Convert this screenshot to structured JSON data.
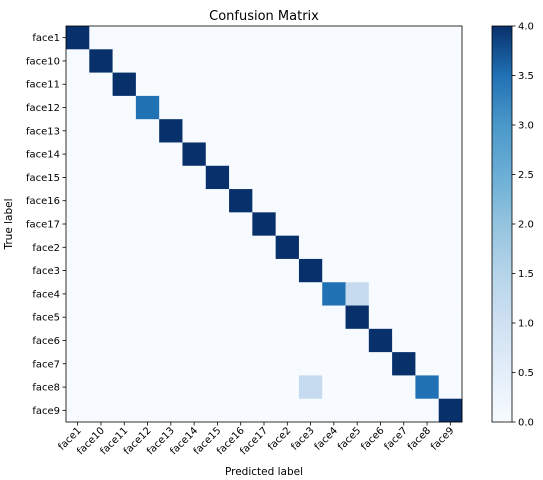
{
  "chart_data": {
    "type": "heatmap",
    "title": "Confusion Matrix",
    "xlabel": "Predicted label",
    "ylabel": "True label",
    "labels": [
      "face1",
      "face10",
      "face11",
      "face12",
      "face13",
      "face14",
      "face15",
      "face16",
      "face17",
      "face2",
      "face3",
      "face4",
      "face5",
      "face6",
      "face7",
      "face8",
      "face9"
    ],
    "matrix": [
      [
        4,
        0,
        0,
        0,
        0,
        0,
        0,
        0,
        0,
        0,
        0,
        0,
        0,
        0,
        0,
        0,
        0
      ],
      [
        0,
        4,
        0,
        0,
        0,
        0,
        0,
        0,
        0,
        0,
        0,
        0,
        0,
        0,
        0,
        0,
        0
      ],
      [
        0,
        0,
        4,
        0,
        0,
        0,
        0,
        0,
        0,
        0,
        0,
        0,
        0,
        0,
        0,
        0,
        0
      ],
      [
        0,
        0,
        0,
        3,
        0,
        0,
        0,
        0,
        0,
        0,
        0,
        0,
        0,
        0,
        0,
        0,
        0
      ],
      [
        0,
        0,
        0,
        0,
        4,
        0,
        0,
        0,
        0,
        0,
        0,
        0,
        0,
        0,
        0,
        0,
        0
      ],
      [
        0,
        0,
        0,
        0,
        0,
        4,
        0,
        0,
        0,
        0,
        0,
        0,
        0,
        0,
        0,
        0,
        0
      ],
      [
        0,
        0,
        0,
        0,
        0,
        0,
        4,
        0,
        0,
        0,
        0,
        0,
        0,
        0,
        0,
        0,
        0
      ],
      [
        0,
        0,
        0,
        0,
        0,
        0,
        0,
        4,
        0,
        0,
        0,
        0,
        0,
        0,
        0,
        0,
        0
      ],
      [
        0,
        0,
        0,
        0,
        0,
        0,
        0,
        0,
        4,
        0,
        0,
        0,
        0,
        0,
        0,
        0,
        0
      ],
      [
        0,
        0,
        0,
        0,
        0,
        0,
        0,
        0,
        0,
        4,
        0,
        0,
        0,
        0,
        0,
        0,
        0
      ],
      [
        0,
        0,
        0,
        0,
        0,
        0,
        0,
        0,
        0,
        0,
        4,
        0,
        0,
        0,
        0,
        0,
        0
      ],
      [
        0,
        0,
        0,
        0,
        0,
        0,
        0,
        0,
        0,
        0,
        0,
        3,
        1,
        0,
        0,
        0,
        0
      ],
      [
        0,
        0,
        0,
        0,
        0,
        0,
        0,
        0,
        0,
        0,
        0,
        0,
        4,
        0,
        0,
        0,
        0
      ],
      [
        0,
        0,
        0,
        0,
        0,
        0,
        0,
        0,
        0,
        0,
        0,
        0,
        0,
        4,
        0,
        0,
        0
      ],
      [
        0,
        0,
        0,
        0,
        0,
        0,
        0,
        0,
        0,
        0,
        0,
        0,
        0,
        0,
        4,
        0,
        0
      ],
      [
        0,
        0,
        0,
        0,
        0,
        0,
        0,
        0,
        0,
        0,
        1,
        0,
        0,
        0,
        0,
        3,
        0
      ],
      [
        0,
        0,
        0,
        0,
        0,
        0,
        0,
        0,
        0,
        0,
        0,
        0,
        0,
        0,
        0,
        0,
        4
      ]
    ],
    "vmin": 0,
    "vmax": 4,
    "colormap": "Blues",
    "colorbar_ticks": [
      "0.0",
      "0.5",
      "1.0",
      "1.5",
      "2.0",
      "2.5",
      "3.0",
      "3.5",
      "4.0"
    ],
    "grid": false
  }
}
